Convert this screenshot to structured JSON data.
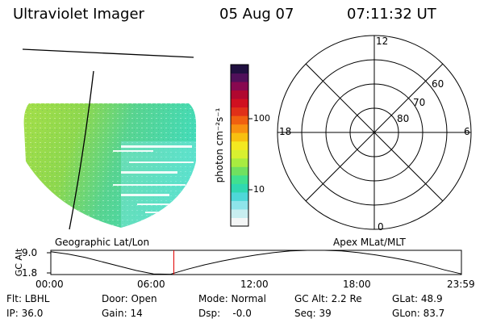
{
  "header": {
    "instrument": "Ultraviolet Imager",
    "date": "05 Aug 07",
    "time": "07:11:32 UT"
  },
  "left_panel": {
    "label": "Geographic Lat/Lon"
  },
  "colorbar": {
    "label": "photon cm⁻²s⁻¹",
    "ticks": [
      "100",
      "10"
    ],
    "colors": [
      "#f4f6f6",
      "#c8eef0",
      "#8ee4ea",
      "#4ed8d8",
      "#30d8b0",
      "#40e090",
      "#70e060",
      "#a8ec40",
      "#d8f030",
      "#f4e820",
      "#f8c010",
      "#f89010",
      "#f06010",
      "#e03018",
      "#d01020",
      "#b00830",
      "#880850",
      "#50105a",
      "#201040"
    ]
  },
  "right_panel": {
    "label": "Apex MLat/MLT",
    "mlt_labels": [
      "12",
      "18",
      "6",
      "0"
    ],
    "mlat_labels": [
      "60",
      "70",
      "80"
    ]
  },
  "orbit_plot": {
    "ylabel": "GC Alt",
    "yticks": [
      "9.0",
      "1.8"
    ],
    "xticks": [
      "00:00",
      "06:00",
      "12:00",
      "18:00",
      "23:59"
    ]
  },
  "chart_data": {
    "type": "line",
    "title": "",
    "xlabel": "",
    "ylabel": "GC Alt",
    "ylim": [
      1.8,
      9.0
    ],
    "xlim": [
      0,
      24
    ],
    "marker_time": 7.19,
    "series": [
      {
        "x": [
          0,
          1,
          2,
          3,
          4,
          5,
          6,
          7,
          7.2,
          8,
          9,
          10,
          11,
          12,
          13,
          14,
          15,
          16,
          17,
          18,
          19,
          20,
          21,
          22,
          23,
          24
        ],
        "y": [
          8.6,
          7.9,
          6.9,
          5.6,
          4.3,
          3.0,
          2.0,
          1.9,
          2.2,
          3.4,
          4.7,
          5.8,
          6.8,
          7.6,
          8.3,
          8.8,
          9.0,
          9.0,
          8.8,
          8.3,
          7.6,
          6.8,
          5.8,
          4.6,
          3.2,
          2.0
        ]
      }
    ]
  },
  "status": {
    "flt": "Flt: LBHL",
    "door": "Door: Open",
    "mode": "Mode: Normal",
    "gc_alt": "GC Alt: 2.2 Re",
    "glat": "GLat: 48.9",
    "ip": "IP: 36.0",
    "gain": "Gain: 14",
    "dsp": "Dsp:    -0.0",
    "seq": "Seq: 39",
    "glon": "GLon: 83.7"
  }
}
